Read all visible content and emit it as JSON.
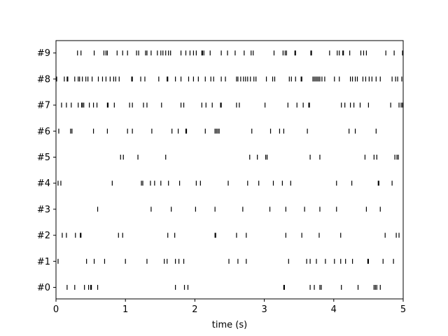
{
  "chart_data": {
    "type": "scatter",
    "xlabel": "time (s)",
    "xlim": [
      0,
      5
    ],
    "x_ticks": [
      "0",
      "1",
      "2",
      "3",
      "4",
      "5"
    ],
    "rows": [
      "#0",
      "#1",
      "#2",
      "#3",
      "#4",
      "#5",
      "#6",
      "#7",
      "#8",
      "#9"
    ],
    "series": [
      {
        "name": "#0",
        "values": [
          0.16,
          0.27,
          0.41,
          0.47,
          0.5,
          0.51,
          0.6,
          1.72,
          1.85,
          1.9,
          3.28,
          3.29,
          3.66,
          3.72,
          3.8,
          3.82,
          4.11,
          4.35,
          4.58,
          4.6,
          4.62,
          4.67
        ]
      },
      {
        "name": "#1",
        "values": [
          0.03,
          0.44,
          0.55,
          0.7,
          1.0,
          1.31,
          1.56,
          1.6,
          1.72,
          1.77,
          1.84,
          2.49,
          2.62,
          2.74,
          3.35,
          3.61,
          3.66,
          3.75,
          3.88,
          4.01,
          4.1,
          4.17,
          4.27,
          4.49,
          4.5,
          4.71,
          4.86
        ]
      },
      {
        "name": "#2",
        "values": [
          0.09,
          0.15,
          0.28,
          0.35,
          0.36,
          0.9,
          0.96,
          1.61,
          1.71,
          2.29,
          2.3,
          2.6,
          2.74,
          3.31,
          3.54,
          3.79,
          4.1,
          4.74,
          4.9,
          4.94
        ]
      },
      {
        "name": "#3",
        "values": [
          0.6,
          1.37,
          1.66,
          2.01,
          2.29,
          2.69,
          3.08,
          3.31,
          3.58,
          3.8,
          4.04,
          4.47,
          4.67
        ]
      },
      {
        "name": "#4",
        "values": [
          0.03,
          0.07,
          0.81,
          1.23,
          1.25,
          1.36,
          1.42,
          1.51,
          1.62,
          1.78,
          2.02,
          2.08,
          2.48,
          2.76,
          2.92,
          3.13,
          3.26,
          3.38,
          4.04,
          4.26,
          4.64,
          4.65,
          4.84
        ]
      },
      {
        "name": "#5",
        "values": [
          0.93,
          0.97,
          1.18,
          1.58,
          2.79,
          2.9,
          3.02,
          3.04,
          3.66,
          3.8,
          4.45,
          4.58,
          4.62,
          4.88,
          4.91,
          4.93
        ]
      },
      {
        "name": "#6",
        "values": [
          0.04,
          0.21,
          0.23,
          0.54,
          0.74,
          1.03,
          1.1,
          1.38,
          1.67,
          1.76,
          1.87,
          1.88,
          2.15,
          2.29,
          2.31,
          2.33,
          2.35,
          2.82,
          3.09,
          3.22,
          3.28,
          3.62,
          4.22,
          4.31,
          4.61
        ]
      },
      {
        "name": "#7",
        "values": [
          0.08,
          0.15,
          0.22,
          0.32,
          0.37,
          0.38,
          0.4,
          0.48,
          0.54,
          0.59,
          0.74,
          0.75,
          0.84,
          1.06,
          1.1,
          1.26,
          1.31,
          1.52,
          1.8,
          1.84,
          2.1,
          2.16,
          2.25,
          2.37,
          2.38,
          2.6,
          2.64,
          3.01,
          3.34,
          3.47,
          3.56,
          3.64,
          3.65,
          4.11,
          4.16,
          4.24,
          4.29,
          4.38,
          4.5,
          4.82,
          4.94,
          4.97,
          4.99
        ]
      },
      {
        "name": "#8",
        "values": [
          0.01,
          0.12,
          0.16,
          0.17,
          0.27,
          0.32,
          0.34,
          0.38,
          0.43,
          0.46,
          0.52,
          0.61,
          0.67,
          0.72,
          0.78,
          0.83,
          0.86,
          0.91,
          1.09,
          1.1,
          1.22,
          1.28,
          1.48,
          1.6,
          1.61,
          1.72,
          1.8,
          1.91,
          1.98,
          2.05,
          2.15,
          2.23,
          2.27,
          2.38,
          2.44,
          2.6,
          2.62,
          2.66,
          2.7,
          2.73,
          2.76,
          2.8,
          2.85,
          2.88,
          3.03,
          3.12,
          3.15,
          3.36,
          3.39,
          3.45,
          3.53,
          3.54,
          3.7,
          3.72,
          3.74,
          3.76,
          3.78,
          3.8,
          3.83,
          3.87,
          4.01,
          4.08,
          4.24,
          4.27,
          4.31,
          4.34,
          4.42,
          4.46,
          4.51,
          4.55,
          4.61,
          4.67,
          4.84,
          4.89,
          4.92,
          4.98
        ]
      },
      {
        "name": "#9",
        "values": [
          0.31,
          0.36,
          0.55,
          0.69,
          0.72,
          0.74,
          0.88,
          0.96,
          1.03,
          1.16,
          1.19,
          1.29,
          1.31,
          1.37,
          1.46,
          1.51,
          1.54,
          1.58,
          1.62,
          1.65,
          1.8,
          1.87,
          1.93,
          1.98,
          2.02,
          2.1,
          2.11,
          2.13,
          2.22,
          2.38,
          2.47,
          2.58,
          2.71,
          2.81,
          2.84,
          3.14,
          3.27,
          3.3,
          3.32,
          3.44,
          3.45,
          3.67,
          3.68,
          3.94,
          4.05,
          4.08,
          4.13,
          4.14,
          4.23,
          4.39,
          4.43,
          4.47,
          4.75,
          4.87,
          4.99
        ]
      }
    ],
    "grid": false,
    "legend": "none",
    "colors": {
      "marks": "#000000",
      "axes": "#000000",
      "background": "#ffffff"
    }
  }
}
